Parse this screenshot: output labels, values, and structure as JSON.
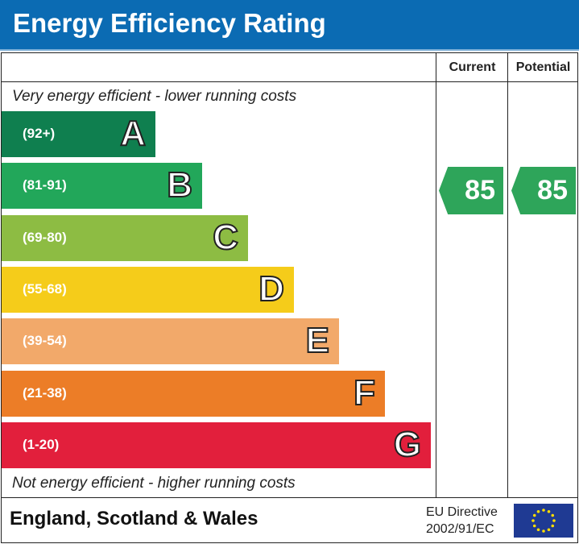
{
  "title": "Energy Efficiency Rating",
  "chart_data": {
    "type": "bar",
    "categories": [
      "A",
      "B",
      "C",
      "D",
      "E",
      "F",
      "G"
    ],
    "ranges": [
      "(92+)",
      "(81-91)",
      "(69-80)",
      "(55-68)",
      "(39-54)",
      "(21-38)",
      "(1-20)"
    ],
    "colors": [
      "#0f7f4f",
      "#22a75a",
      "#8dbc43",
      "#f5cc1a",
      "#f2a96a",
      "#ec7d27",
      "#e21f3c"
    ],
    "top_note": "Very energy efficient - lower running costs",
    "bottom_note": "Not energy efficient - higher running costs",
    "columns": [
      "Current",
      "Potential"
    ],
    "current": {
      "value": "85",
      "band": "B",
      "color": "#2ea55a"
    },
    "potential": {
      "value": "85",
      "band": "B",
      "color": "#2ea55a"
    }
  },
  "footer": {
    "region": "England, Scotland & Wales",
    "directive_line1": "EU Directive",
    "directive_line2": "2002/91/EC"
  }
}
